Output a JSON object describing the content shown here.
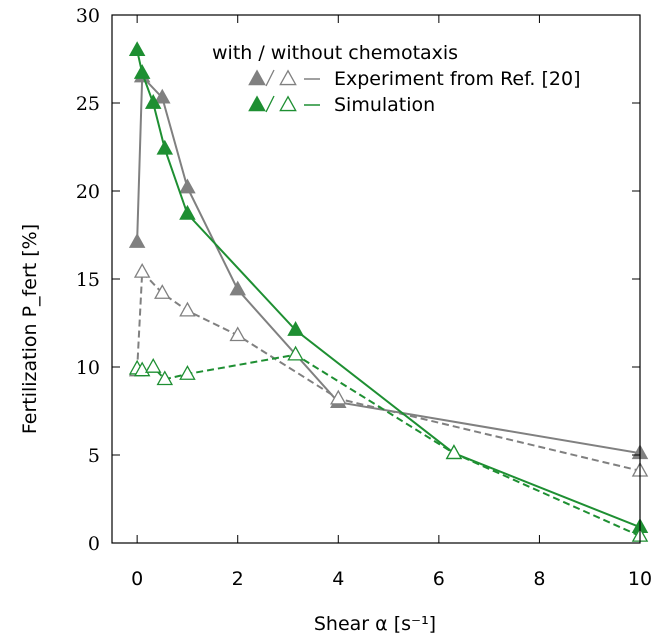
{
  "chart_data": {
    "type": "line",
    "xlabel": "Shear α [s⁻¹]",
    "ylabel": "Fertilization P_fert [%]",
    "xlim": [
      -0.5,
      10
    ],
    "ylim": [
      0,
      30
    ],
    "xticks": [
      0,
      2,
      4,
      6,
      8,
      10
    ],
    "yticks": [
      0,
      5,
      10,
      15,
      20,
      25,
      30
    ],
    "grid": false,
    "legend_position": "top-right",
    "legend_title": "with / without chemotaxis",
    "legend_entries": [
      "Experiment from Ref. [20]",
      "Simulation"
    ],
    "series": [
      {
        "name": "Experiment from Ref. [20]",
        "variant": "with chemotaxis",
        "color": "#808080",
        "marker": "filled-triangle",
        "dash": "solid",
        "x": [
          0,
          0.1,
          0.5,
          1.0,
          2.0,
          4.0,
          10.0
        ],
        "y": [
          17.1,
          26.5,
          25.3,
          20.2,
          14.4,
          8.0,
          5.1
        ]
      },
      {
        "name": "Experiment from Ref. [20]",
        "variant": "without chemotaxis",
        "color": "#808080",
        "marker": "open-triangle",
        "dash": "dashed",
        "x": [
          0,
          0.1,
          0.5,
          1.0,
          2.0,
          4.0,
          10.0
        ],
        "y": [
          9.8,
          15.4,
          14.2,
          13.2,
          11.8,
          8.2,
          4.1
        ]
      },
      {
        "name": "Simulation",
        "variant": "with chemotaxis",
        "color": "#1e8f32",
        "marker": "filled-triangle",
        "dash": "solid",
        "x": [
          0,
          0.1,
          0.32,
          0.55,
          1.0,
          3.15,
          6.3,
          10.0
        ],
        "y": [
          28.0,
          26.7,
          25.0,
          22.4,
          18.7,
          12.1,
          5.1,
          0.9
        ]
      },
      {
        "name": "Simulation",
        "variant": "without chemotaxis",
        "color": "#1e8f32",
        "marker": "open-triangle",
        "dash": "dashed",
        "x": [
          0,
          0.1,
          0.32,
          0.55,
          1.0,
          3.15,
          6.3,
          10.0
        ],
        "y": [
          9.9,
          9.8,
          10.0,
          9.3,
          9.6,
          10.7,
          5.1,
          0.4
        ]
      }
    ]
  }
}
